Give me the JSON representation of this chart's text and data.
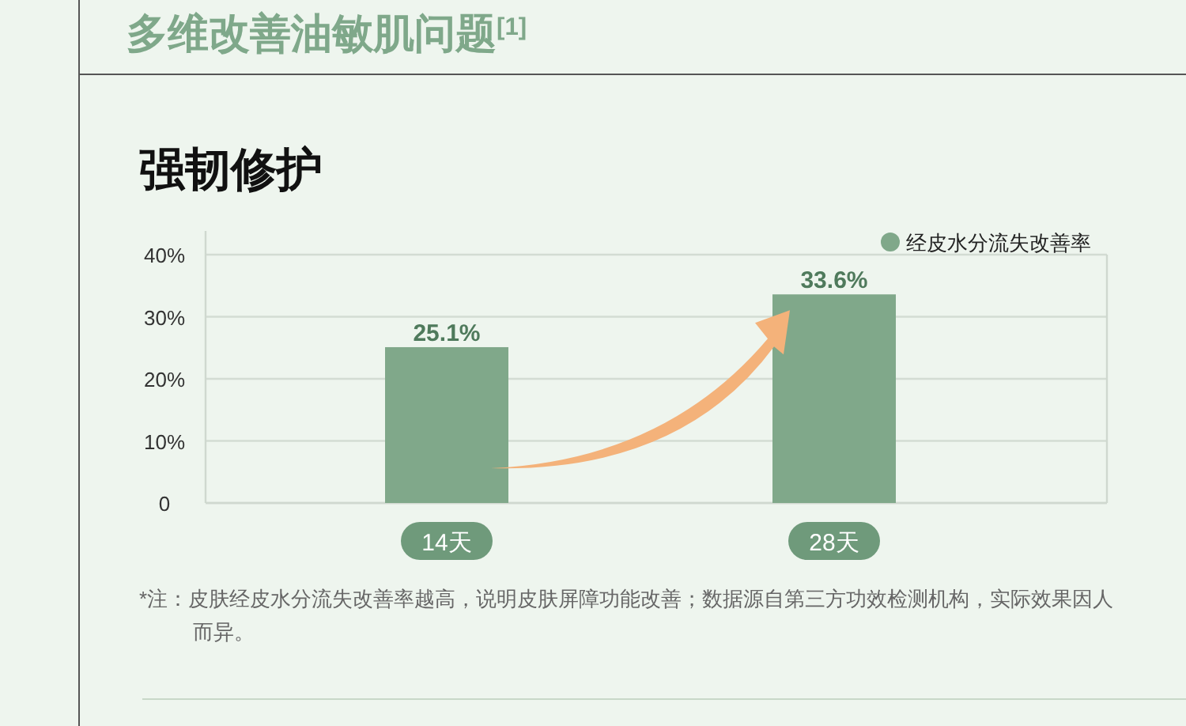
{
  "chart_data": {
    "type": "bar",
    "title": "强韧修护",
    "annotations": [
      "多维改善油敏肌问题$^{[1]}$",
      "*注：皮肤经皮水分流失改善率越高，说明皮肤屏障功能改善；数据源自第三方功效检测机构，实际效果因人而异。"
    ],
    "categories": [
      "14天",
      "28天"
    ],
    "series": [
      {
        "name": "经皮水分流失改善率",
        "color": "#80a88a",
        "values": [
          25.1,
          33.6
        ]
      }
    ],
    "ylim": [
      0,
      40
    ],
    "yticks": [
      0,
      {
        "value": 10,
        "label": "10%"
      },
      {
        "value": 20,
        "label": "20%"
      },
      {
        "value": 30,
        "label": "30%"
      },
      {
        "value": 40,
        "label": "40%"
      }
    ],
    "value_labels": [
      "25.1%",
      "33.6%"
    ],
    "grid": "y",
    "legend": "top right"
  }
}
